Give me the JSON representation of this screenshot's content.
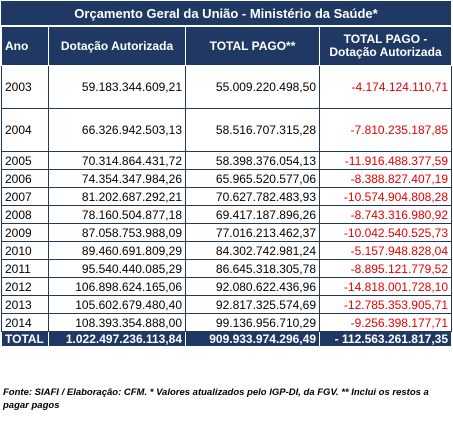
{
  "title": "Orçamento Geral da União - Ministério da Saúde*",
  "headers": {
    "year": "Ano",
    "authorized": "Dotação Autorizada",
    "paid": "TOTAL PAGO**",
    "diff_line1": "TOTAL PAGO -",
    "diff_line2": "Dotação Autorizada"
  },
  "rows": [
    {
      "year": "2003",
      "authorized": "59.183.344.609,21",
      "paid": "55.009.220.498,50",
      "diff": "-4.174.124.110,71"
    },
    {
      "year": "2004",
      "authorized": "66.326.942.503,13",
      "paid": "58.516.707.315,28",
      "diff": "-7.810.235.187,85"
    },
    {
      "year": "2005",
      "authorized": "70.314.864.431,72",
      "paid": "58.398.376.054,13",
      "diff": "-11.916.488.377,59"
    },
    {
      "year": "2006",
      "authorized": "74.354.347.984,26",
      "paid": "65.965.520.577,06",
      "diff": "-8.388.827.407,19"
    },
    {
      "year": "2007",
      "authorized": "81.202.687.292,21",
      "paid": "70.627.782.483,93",
      "diff": "-10.574.904.808,28"
    },
    {
      "year": "2008",
      "authorized": "78.160.504.877,18",
      "paid": "69.417.187.896,26",
      "diff": "-8.743.316.980,92"
    },
    {
      "year": "2009",
      "authorized": "87.058.753.988,09",
      "paid": "77.016.213.462,37",
      "diff": "-10.042.540.525,73"
    },
    {
      "year": "2010",
      "authorized": "89.460.691.809,29",
      "paid": "84.302.742.981,24",
      "diff": "-5.157.948.828,04"
    },
    {
      "year": "2011",
      "authorized": "95.540.440.085,29",
      "paid": "86.645.318.305,78",
      "diff": "-8.895.121.779,52"
    },
    {
      "year": "2012",
      "authorized": "106.898.624.165,06",
      "paid": "92.080.622.436,96",
      "diff": "-14.818.001.728,10"
    },
    {
      "year": "2013",
      "authorized": "105.602.679.480,40",
      "paid": "92.817.325.574,69",
      "diff": "-12.785.353.905,71"
    },
    {
      "year": "2014",
      "authorized": "108.393.354.888,00",
      "paid": "99.136.956.710,29",
      "diff": "-9.256.398.177,71"
    }
  ],
  "total": {
    "label": "TOTAL",
    "authorized": "1.022.497.236.113,84",
    "paid": "909.933.974.296,49",
    "diff": "- 112.563.261.817,35"
  },
  "footnote": "Fonte: SIAFI / Elaboração: CFM. * Valores atualizados pelo IGP-DI, da FGV. ** Inclui os restos a pagar pagos",
  "colors": {
    "header_bg": "#1F3864",
    "negative": "#E60000"
  }
}
